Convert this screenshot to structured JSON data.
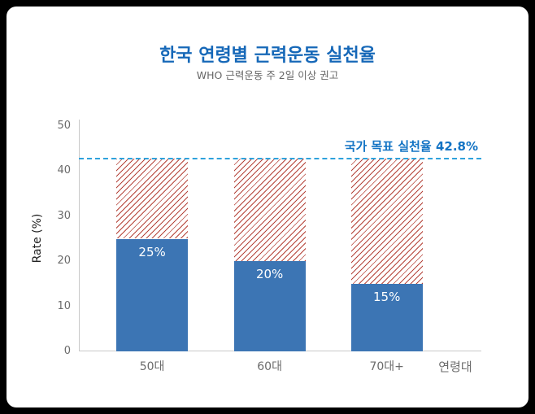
{
  "chart_data": {
    "type": "bar",
    "title": "한국 연령별 근력운동 실천율",
    "subtitle": "WHO 근력운동 주 2일 이상 권고",
    "ylabel": "Rate (%)",
    "xlabel": "연령대",
    "categories": [
      "50대",
      "60대",
      "70대+"
    ],
    "values": [
      25,
      20,
      15
    ],
    "bar_labels": [
      "25%",
      "20%",
      "15%"
    ],
    "ylim": [
      0,
      50
    ],
    "yticks": [
      0,
      10,
      20,
      30,
      40,
      50
    ],
    "grid": false,
    "legend": false,
    "target_line": {
      "value": 42.8,
      "label": "국가 목표 실천율 42.8%"
    },
    "colors": {
      "bar": "#3c75b4",
      "bar_label": "#ffffff",
      "hatch": "#b5443a",
      "target_line": "#2ea2dc",
      "target_label": "#1273c4",
      "title": "#1668b8",
      "subtitle": "#666666",
      "axis": "#c9c9c9",
      "tick_label": "#6b6b6b"
    }
  }
}
